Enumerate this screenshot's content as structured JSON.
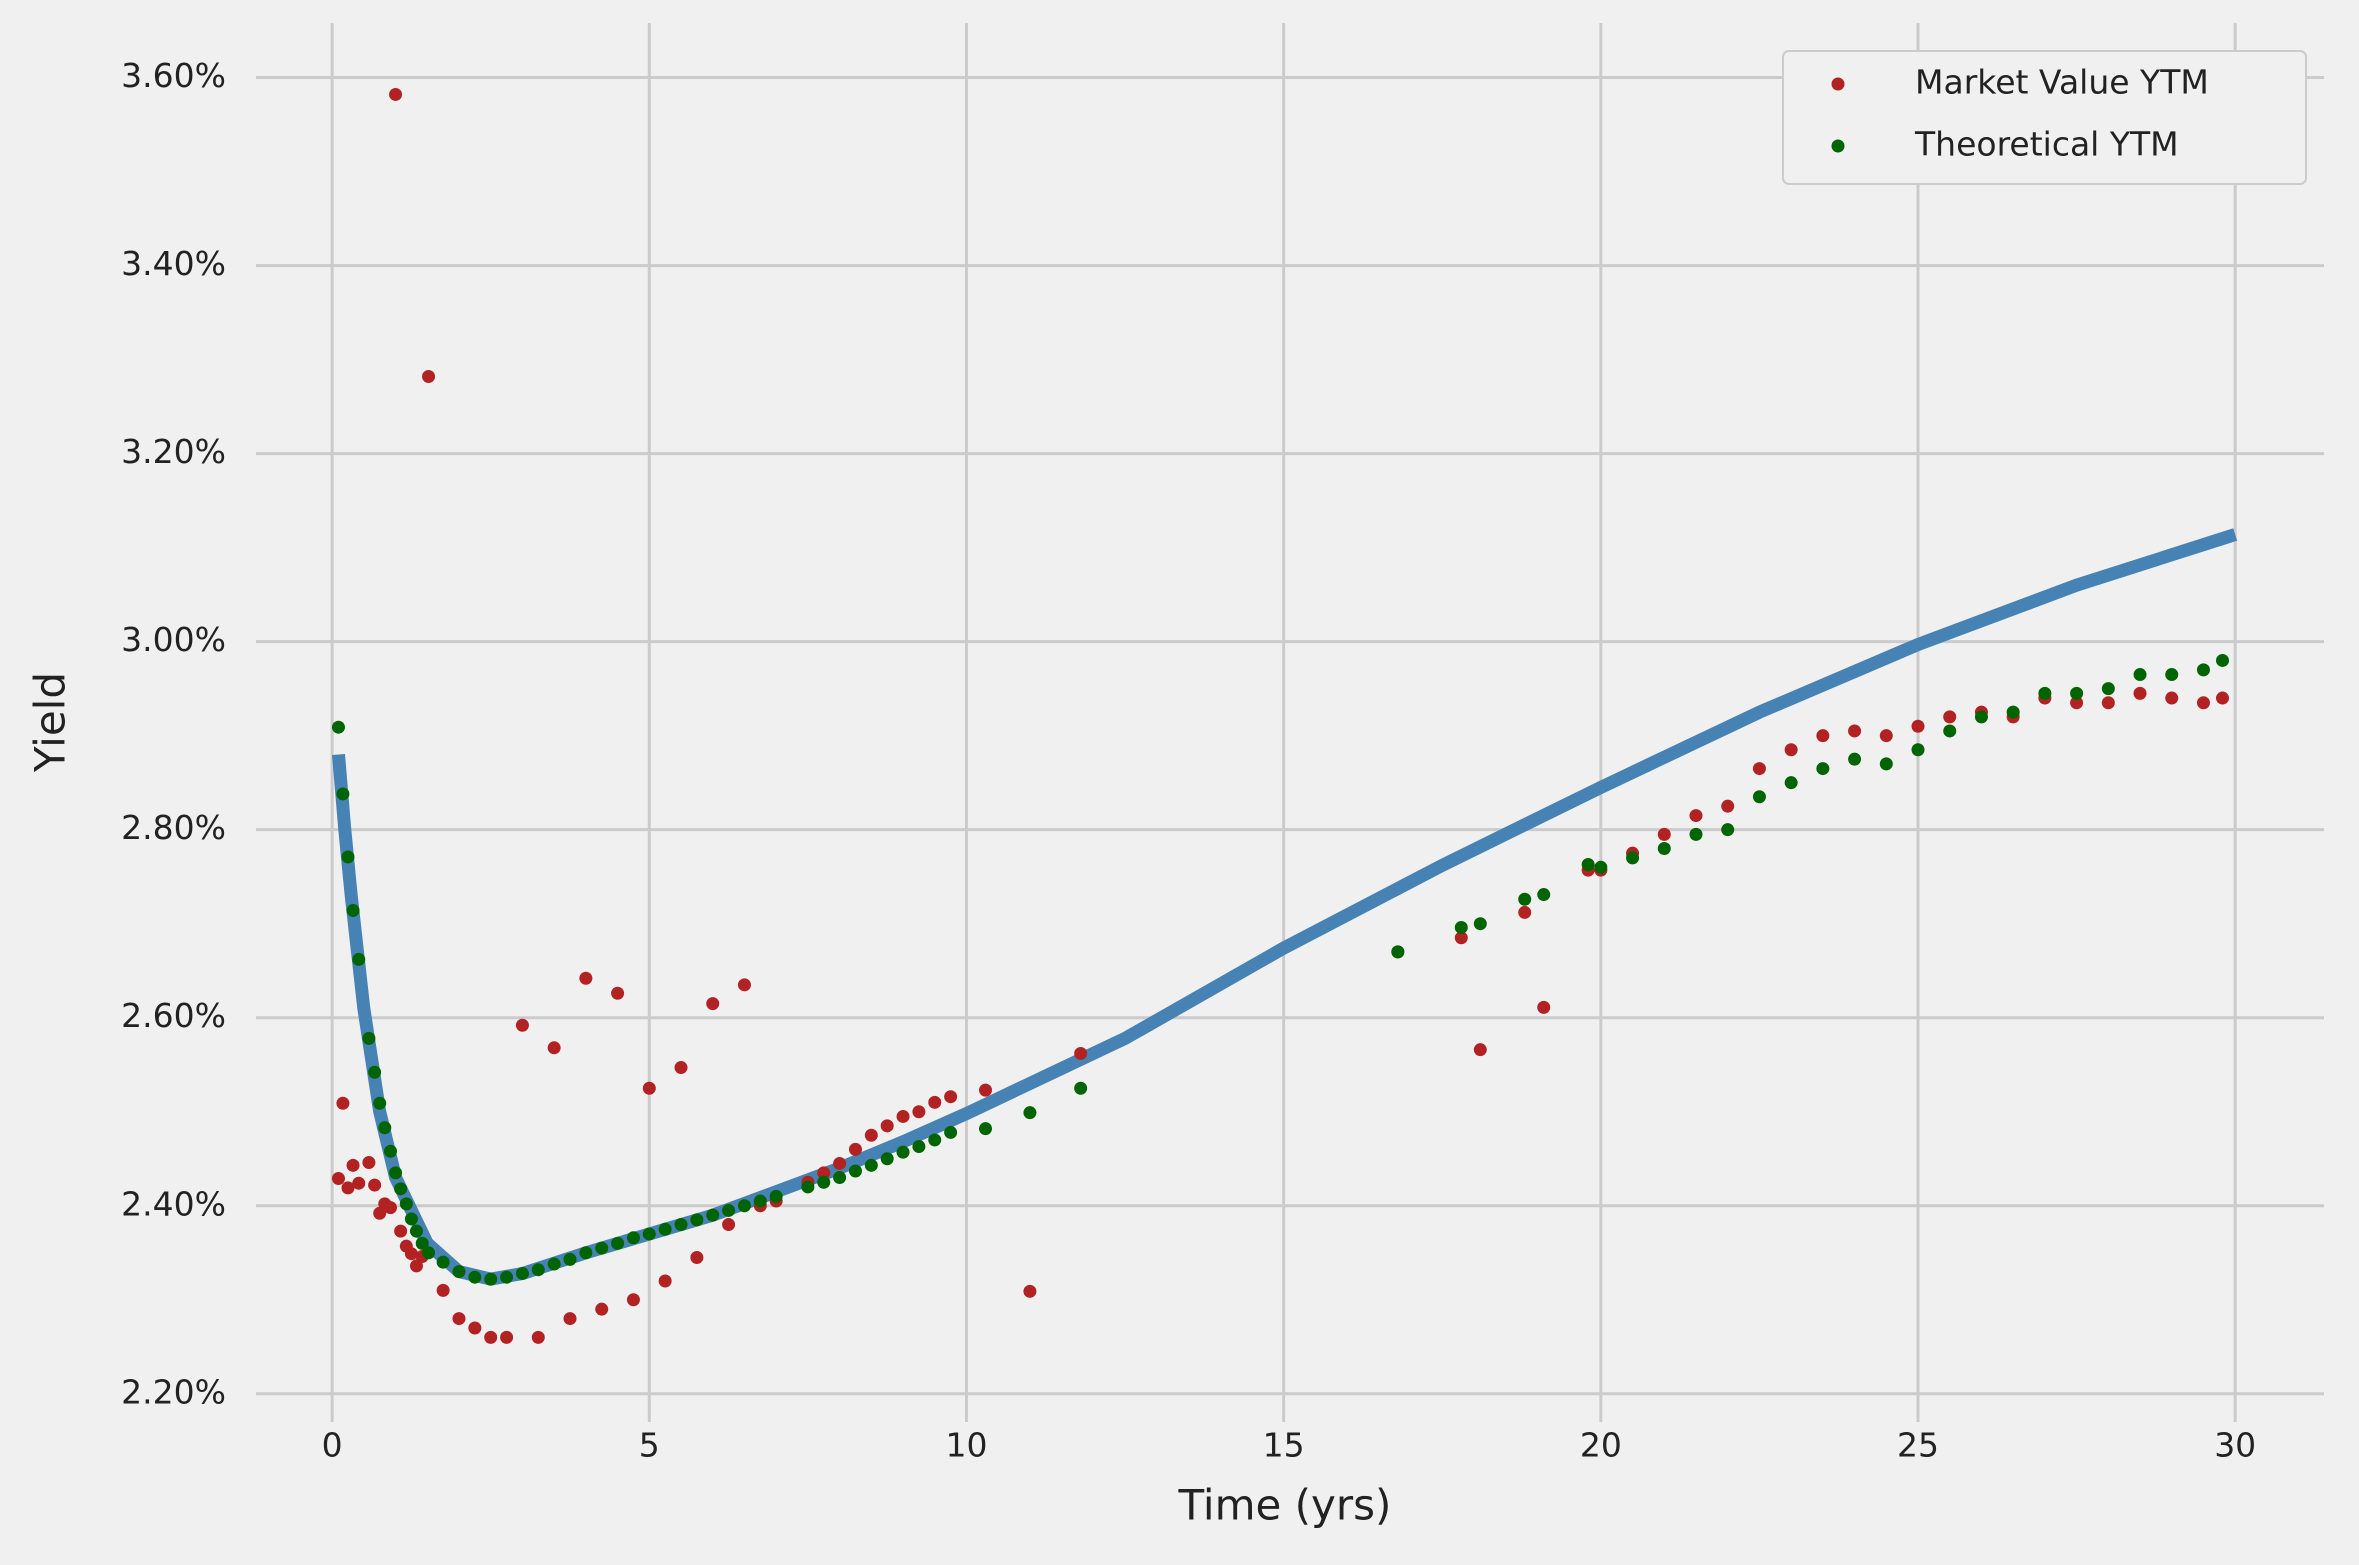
{
  "chart_data": {
    "type": "scatter",
    "xlabel": "Time (yrs)",
    "ylabel": "Yield",
    "x": [
      0.1,
      0.17,
      0.25,
      0.33,
      0.42,
      0.58,
      0.67,
      0.75,
      0.83,
      0.92,
      1.0,
      1.08,
      1.17,
      1.25,
      1.33,
      1.42,
      1.52,
      1.75,
      2,
      2.25,
      2.5,
      2.75,
      3,
      3.25,
      3.5,
      3.75,
      4,
      4.25,
      4.5,
      4.75,
      5,
      5.25,
      5.5,
      5.75,
      6,
      6.25,
      6.5,
      6.75,
      7,
      7.5,
      7.75,
      8,
      8.25,
      8.5,
      8.75,
      9,
      9.25,
      9.5,
      9.75,
      10.3,
      11.0,
      11.8,
      16.8,
      17.8,
      18.1,
      18.8,
      19.1,
      19.8,
      20,
      20.5,
      21,
      21.5,
      22,
      22.5,
      23,
      23.5,
      24,
      24.5,
      25,
      25.5,
      26,
      26.5,
      27,
      27.5,
      28,
      28.5,
      29,
      29.5,
      29.8
    ],
    "series": [
      {
        "name": "Market Value YTM",
        "color": "#b22222",
        "values": [
          2.429,
          2.509,
          2.419,
          2.443,
          2.424,
          2.446,
          2.422,
          2.392,
          2.402,
          2.398,
          3.582,
          2.373,
          2.357,
          2.349,
          2.336,
          2.346,
          3.282,
          2.31,
          2.28,
          2.27,
          2.26,
          2.26,
          2.592,
          2.26,
          2.568,
          2.28,
          2.642,
          2.29,
          2.626,
          2.3,
          2.525,
          2.32,
          2.547,
          2.345,
          2.615,
          2.38,
          2.635,
          2.4,
          2.405,
          2.425,
          2.435,
          2.445,
          2.46,
          2.475,
          2.485,
          2.495,
          2.5,
          2.51,
          2.516,
          2.523,
          2.309,
          2.562,
          2.67,
          2.685,
          2.566,
          2.712,
          2.611,
          2.757,
          2.757,
          2.775,
          2.795,
          2.815,
          2.825,
          2.865,
          2.885,
          2.9,
          2.905,
          2.9,
          2.91,
          2.92,
          2.925,
          2.92,
          2.94,
          2.935,
          2.935,
          2.945,
          2.94,
          2.935,
          2.94
        ]
      },
      {
        "name": "Theoretical YTM",
        "color": "#006400",
        "values": [
          2.909,
          2.838,
          2.771,
          2.714,
          2.662,
          2.578,
          2.542,
          2.509,
          2.483,
          2.458,
          2.435,
          2.418,
          2.402,
          2.386,
          2.373,
          2.36,
          2.35,
          2.34,
          2.33,
          2.324,
          2.322,
          2.324,
          2.328,
          2.332,
          2.338,
          2.343,
          2.35,
          2.355,
          2.36,
          2.366,
          2.37,
          2.375,
          2.38,
          2.385,
          2.39,
          2.395,
          2.4,
          2.405,
          2.41,
          2.42,
          2.425,
          2.43,
          2.437,
          2.443,
          2.45,
          2.457,
          2.463,
          2.47,
          2.478,
          2.482,
          2.499,
          2.525,
          2.67,
          2.696,
          2.7,
          2.726,
          2.731,
          2.763,
          2.76,
          2.77,
          2.78,
          2.795,
          2.8,
          2.835,
          2.85,
          2.865,
          2.875,
          2.87,
          2.885,
          2.905,
          2.92,
          2.925,
          2.945,
          2.945,
          2.95,
          2.965,
          2.965,
          2.97,
          2.98
        ]
      }
    ],
    "curve": {
      "color": "#4682b4",
      "x": [
        0.1,
        0.2,
        0.3,
        0.5,
        0.75,
        1,
        1.5,
        2,
        2.5,
        3,
        4,
        5,
        6,
        7,
        8,
        9,
        10,
        11,
        12.5,
        15,
        17.5,
        20,
        22.5,
        25,
        27.5,
        30
      ],
      "values": [
        2.88,
        2.8,
        2.73,
        2.61,
        2.5,
        2.43,
        2.36,
        2.33,
        2.322,
        2.328,
        2.35,
        2.37,
        2.39,
        2.415,
        2.44,
        2.468,
        2.498,
        2.53,
        2.578,
        2.674,
        2.762,
        2.845,
        2.925,
        2.997,
        3.06,
        3.114
      ]
    },
    "xlim": [
      -1.2,
      31.4
    ],
    "ylim": [
      2.17,
      3.658
    ],
    "xticks": [
      0,
      5,
      10,
      15,
      20,
      25,
      30
    ],
    "yticks": [
      {
        "value": 2.2,
        "label": "2.20%"
      },
      {
        "value": 2.4,
        "label": "2.40%"
      },
      {
        "value": 2.6,
        "label": "2.60%"
      },
      {
        "value": 2.8,
        "label": "2.80%"
      },
      {
        "value": 3.0,
        "label": "3.00%"
      },
      {
        "value": 3.2,
        "label": "3.20%"
      },
      {
        "value": 3.4,
        "label": "3.40%"
      },
      {
        "value": 3.6,
        "label": "3.60%"
      }
    ],
    "grid": true,
    "legend": "upper right"
  }
}
